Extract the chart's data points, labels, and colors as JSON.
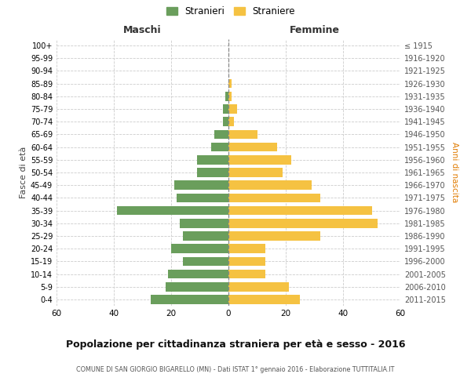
{
  "age_groups": [
    "100+",
    "95-99",
    "90-94",
    "85-89",
    "80-84",
    "75-79",
    "70-74",
    "65-69",
    "60-64",
    "55-59",
    "50-54",
    "45-49",
    "40-44",
    "35-39",
    "30-34",
    "25-29",
    "20-24",
    "15-19",
    "10-14",
    "5-9",
    "0-4"
  ],
  "birth_years": [
    "≤ 1915",
    "1916-1920",
    "1921-1925",
    "1926-1930",
    "1931-1935",
    "1936-1940",
    "1941-1945",
    "1946-1950",
    "1951-1955",
    "1956-1960",
    "1961-1965",
    "1966-1970",
    "1971-1975",
    "1976-1980",
    "1981-1985",
    "1986-1990",
    "1991-1995",
    "1996-2000",
    "2001-2005",
    "2006-2010",
    "2011-2015"
  ],
  "maschi": [
    0,
    0,
    0,
    0,
    1,
    2,
    2,
    5,
    6,
    11,
    11,
    19,
    18,
    39,
    17,
    16,
    20,
    16,
    21,
    22,
    27
  ],
  "femmine": [
    0,
    0,
    0,
    1,
    1,
    3,
    2,
    10,
    17,
    22,
    19,
    29,
    32,
    50,
    52,
    32,
    13,
    13,
    13,
    21,
    25
  ],
  "color_maschi": "#6a9e5c",
  "color_femmine": "#f5c242",
  "title": "Popolazione per cittadinanza straniera per età e sesso - 2016",
  "subtitle": "COMUNE DI SAN GIORGIO BIGARELLO (MN) - Dati ISTAT 1° gennaio 2016 - Elaborazione TUTTITALIA.IT",
  "xlabel_left": "Maschi",
  "xlabel_right": "Femmine",
  "ylabel_left": "Fasce di età",
  "ylabel_right": "Anni di nascita",
  "legend_maschi": "Stranieri",
  "legend_femmine": "Straniere",
  "xlim": 60,
  "background_color": "#ffffff",
  "grid_color": "#cccccc"
}
